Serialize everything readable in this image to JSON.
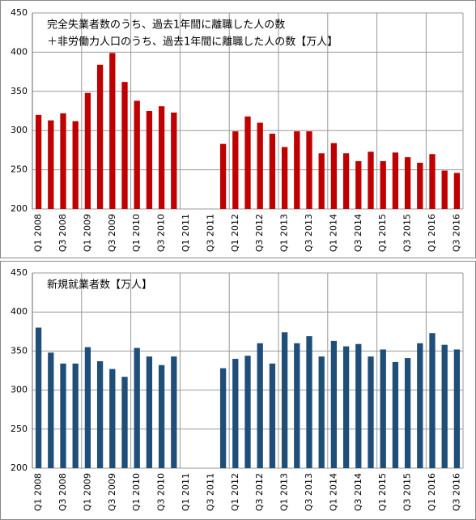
{
  "chart_data": [
    {
      "type": "bar",
      "title_lines": [
        "完全失業者数のうち、過去1年間に離職した人の数",
        "＋非労働力人口のうち、過去1年間に離職した人の数【万人】"
      ],
      "categories": [
        "Q1 2008",
        null,
        "Q3 2008",
        null,
        "Q1 2009",
        null,
        "Q3 2009",
        null,
        "Q1 2010",
        null,
        "Q3 2010",
        null,
        "Q1 2011",
        null,
        "Q3 2011",
        null,
        "Q1 2012",
        null,
        "Q3 2012",
        null,
        "Q1 2013",
        null,
        "Q3 2013",
        null,
        "Q1 2014",
        null,
        "Q3 2014",
        null,
        "Q1 2015",
        null,
        "Q3 2015",
        null,
        "Q1 2016",
        null,
        "Q3 2016"
      ],
      "values": [
        320,
        313,
        322,
        312,
        348,
        384,
        399,
        362,
        338,
        325,
        331,
        323,
        null,
        null,
        null,
        283,
        299,
        318,
        310,
        296,
        279,
        299,
        299,
        271,
        284,
        271,
        261,
        273,
        261,
        272,
        266,
        259,
        270,
        249,
        246
      ],
      "color": "#c00000",
      "ylim": [
        200,
        450
      ],
      "yticks": [
        200,
        250,
        300,
        350,
        400,
        450
      ],
      "grid": true
    },
    {
      "type": "bar",
      "title_lines": [
        "新規就業者数【万人】"
      ],
      "categories": [
        "Q1 2008",
        null,
        "Q3 2008",
        null,
        "Q1 2009",
        null,
        "Q3 2009",
        null,
        "Q1 2010",
        null,
        "Q3 2010",
        null,
        "Q1 2011",
        null,
        "Q3 2011",
        null,
        "Q1 2012",
        null,
        "Q3 2012",
        null,
        "Q1 2013",
        null,
        "Q3 2013",
        null,
        "Q1 2014",
        null,
        "Q3 2014",
        null,
        "Q1 2015",
        null,
        "Q3 2015",
        null,
        "Q1 2016",
        null,
        "Q3 2016"
      ],
      "values": [
        380,
        348,
        334,
        334,
        355,
        337,
        327,
        317,
        354,
        343,
        332,
        343,
        null,
        null,
        null,
        328,
        340,
        344,
        360,
        334,
        374,
        360,
        369,
        343,
        363,
        356,
        359,
        343,
        352,
        336,
        341,
        360,
        373,
        358,
        352
      ],
      "color": "#1f4e79",
      "ylim": [
        200,
        450
      ],
      "yticks": [
        200,
        250,
        300,
        350,
        400,
        450
      ],
      "grid": true
    }
  ]
}
